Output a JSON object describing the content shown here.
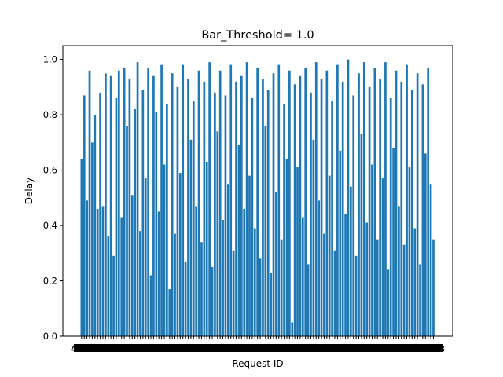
{
  "chart_data": {
    "type": "bar",
    "title": "Bar_Threshold= 1.0",
    "xlabel": "Request ID",
    "ylabel": "Delay",
    "ylim": [
      0.0,
      1.05
    ],
    "yticks": [
      "0.0",
      "0.2",
      "0.4",
      "0.6",
      "0.8",
      "1.0"
    ],
    "bar_color": "#1f77b4",
    "grid": false,
    "x_tick_labels_visible": [
      "48",
      "",
      "58"
    ],
    "values": [
      0.64,
      0.87,
      0.49,
      0.96,
      0.7,
      0.8,
      0.46,
      0.88,
      0.47,
      0.95,
      0.36,
      0.94,
      0.29,
      0.86,
      0.96,
      0.43,
      0.97,
      0.76,
      0.93,
      0.51,
      0.82,
      0.99,
      0.38,
      0.89,
      0.57,
      0.97,
      0.22,
      0.94,
      0.81,
      0.45,
      0.98,
      0.62,
      0.84,
      0.17,
      0.95,
      0.37,
      0.9,
      0.59,
      0.98,
      0.27,
      0.93,
      0.71,
      0.85,
      0.47,
      0.96,
      0.34,
      0.92,
      0.63,
      0.99,
      0.25,
      0.88,
      0.74,
      0.96,
      0.42,
      0.87,
      0.55,
      0.98,
      0.31,
      0.92,
      0.69,
      0.94,
      0.46,
      0.99,
      0.58,
      0.86,
      0.39,
      0.97,
      0.28,
      0.93,
      0.76,
      0.89,
      0.23,
      0.95,
      0.52,
      0.98,
      0.35,
      0.84,
      0.64,
      0.96,
      0.05,
      0.91,
      0.61,
      0.94,
      0.43,
      0.97,
      0.26,
      0.88,
      0.71,
      0.99,
      0.49,
      0.93,
      0.37,
      0.96,
      0.58,
      0.85,
      0.31,
      0.98,
      0.67,
      0.92,
      0.44,
      1.0,
      0.54,
      0.87,
      0.29,
      0.95,
      0.73,
      0.99,
      0.41,
      0.9,
      0.62,
      0.97,
      0.35,
      0.93,
      0.57,
      0.99,
      0.24,
      0.86,
      0.68,
      0.96,
      0.47,
      0.92,
      0.33,
      0.98,
      0.61,
      0.89,
      0.39,
      0.95,
      0.26,
      0.91,
      0.66,
      0.97,
      0.55,
      0.35
    ]
  }
}
